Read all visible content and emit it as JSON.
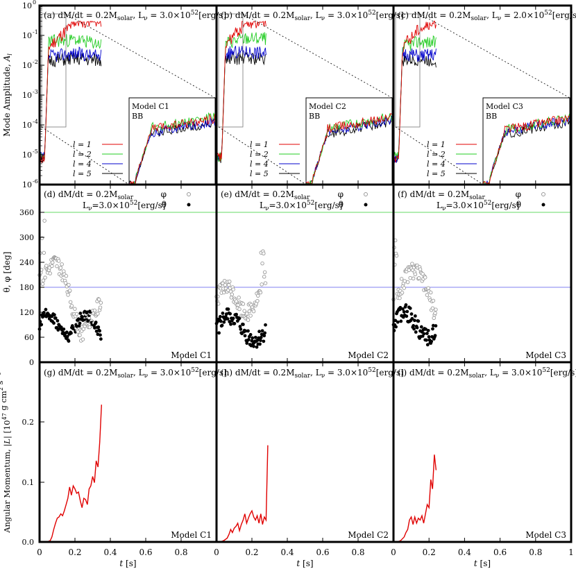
{
  "chart_data": {
    "type": "line",
    "layout": "3x3 grid",
    "x_axis": {
      "label": "t [s]",
      "ticks": [
        "0",
        "0.2",
        "0.4",
        "0.6",
        "0.8",
        "1"
      ],
      "range": [
        0,
        1
      ]
    },
    "row_labels": {
      "top": "Mode Amplitude, A_l",
      "middle": "θ, φ [deg]",
      "bottom": "Angular Momentum, |L| [10^47 g cm^2 s^-1]"
    },
    "top_yticks": [
      "10^0",
      "10^-1",
      "10^-2",
      "10^-3",
      "10^-4",
      "10^-5",
      "10^-6"
    ],
    "mid_yticks": [
      "0",
      "60",
      "120",
      "180",
      "240",
      "300",
      "360"
    ],
    "bot_yticks": [
      "0.0",
      "0.1",
      "0.2"
    ],
    "legend_modes": [
      "l = 1",
      "l = 2",
      "l = 4",
      "l = 5"
    ],
    "legend_angles": [
      "φ",
      "θ"
    ],
    "colors": {
      "l1": "#e00000",
      "l2": "#22cc22",
      "l4": "#0000cc",
      "l5": "#000000",
      "phi": "#999999",
      "theta": "#000000",
      "L": "#e00000",
      "ref360": "#33cc33",
      "ref180": "#5555ee"
    },
    "panels": {
      "a": {
        "tag": "(a) dM/dt = 0.2M",
        "sub": "solar",
        "mid": ", L",
        "nu": "ν",
        "eq": " = 3.0×10",
        "exp": "52",
        "unit": "[erg/s]"
      },
      "b": {
        "tag": "(b) dM/dt = 0.2M",
        "sub": "solar",
        "mid": ", L",
        "nu": "ν",
        "eq": " = 3.0×10",
        "exp": "52",
        "unit": "[erg/s]"
      },
      "c": {
        "tag": "(c) dM/dt = 0.2M",
        "sub": "solar",
        "mid": ", L",
        "nu": "ν",
        "eq": " = 2.0×10",
        "exp": "52",
        "unit": "[erg/s]"
      },
      "d": {
        "tag": "(d) dM/dt = 0.2M",
        "sub": "solar",
        "l2a": "L",
        "nu": "ν",
        "l2b": "=3.0×10",
        "exp": "52",
        "unit": "[erg/s]"
      },
      "e": {
        "tag": "(e) dM/dt = 0.2M",
        "sub": "solar",
        "l2a": "L",
        "nu": "ν",
        "l2b": "=3.0×10",
        "exp": "52",
        "unit": "[erg/s]"
      },
      "f": {
        "tag": "(f) dM/dt = 0.2M",
        "sub": "solar",
        "l2a": "L",
        "nu": "ν",
        "l2b": "=3.0×10",
        "exp": "52",
        "unit": "[erg/s]"
      },
      "g": {
        "tag": "(g) dM/dt = 0.2M",
        "sub": "solar",
        "mid": ", L",
        "nu": "ν",
        "eq": " = 3.0×10",
        "exp": "52",
        "unit": "[erg/s]"
      },
      "h": {
        "tag": "(h) dM/dt = 0.2M",
        "sub": "solar",
        "mid": ", L",
        "nu": "ν",
        "eq": " = 3.0×10",
        "exp": "52",
        "unit": "[erg/s]"
      },
      "i": {
        "tag": "(i) dM/dt = 0.2M",
        "sub": "solar",
        "mid": ", L",
        "nu": "ν",
        "eq": " = 3.0×10",
        "exp": "52",
        "unit": "[erg/s]"
      }
    },
    "models": [
      "Model C1",
      "Model C2",
      "Model C3"
    ],
    "inset_tag": "BB",
    "angular_momentum": [
      {
        "model": "Model C1",
        "x": [
          0.02,
          0.04,
          0.06,
          0.07,
          0.08,
          0.09,
          0.1,
          0.11,
          0.12,
          0.13,
          0.14,
          0.15,
          0.16,
          0.17,
          0.18,
          0.19,
          0.2,
          0.21,
          0.22,
          0.23,
          0.24,
          0.25,
          0.26,
          0.27,
          0.28,
          0.29,
          0.3,
          0.31,
          0.32,
          0.33,
          0.34,
          0.35
        ],
        "y": [
          0,
          0,
          0.002,
          0.008,
          0.02,
          0.03,
          0.038,
          0.04,
          0.045,
          0.042,
          0.05,
          0.06,
          0.07,
          0.088,
          0.075,
          0.09,
          0.085,
          0.078,
          0.08,
          0.066,
          0.055,
          0.07,
          0.068,
          0.06,
          0.085,
          0.09,
          0.105,
          0.095,
          0.13,
          0.12,
          0.16,
          0.22
        ]
      },
      {
        "model": "Model C2",
        "x": [
          0.02,
          0.04,
          0.06,
          0.07,
          0.08,
          0.09,
          0.1,
          0.11,
          0.12,
          0.13,
          0.14,
          0.15,
          0.16,
          0.17,
          0.18,
          0.19,
          0.2,
          0.21,
          0.22,
          0.23,
          0.24,
          0.25,
          0.26,
          0.27,
          0.28,
          0.29
        ],
        "y": [
          0,
          0.002,
          0.006,
          0.012,
          0.02,
          0.015,
          0.022,
          0.025,
          0.03,
          0.018,
          0.028,
          0.035,
          0.045,
          0.03,
          0.038,
          0.045,
          0.05,
          0.04,
          0.035,
          0.042,
          0.03,
          0.045,
          0.028,
          0.04,
          0.035,
          0.155
        ]
      },
      {
        "model": "Model C3",
        "x": [
          0.02,
          0.04,
          0.06,
          0.07,
          0.08,
          0.09,
          0.1,
          0.11,
          0.12,
          0.13,
          0.14,
          0.15,
          0.16,
          0.17,
          0.18,
          0.19,
          0.2,
          0.21,
          0.22,
          0.23,
          0.24
        ],
        "y": [
          0,
          0.002,
          0.008,
          0.015,
          0.02,
          0.035,
          0.04,
          0.028,
          0.04,
          0.03,
          0.038,
          0.035,
          0.042,
          0.03,
          0.045,
          0.06,
          0.055,
          0.1,
          0.085,
          0.14,
          0.115
        ]
      }
    ]
  }
}
